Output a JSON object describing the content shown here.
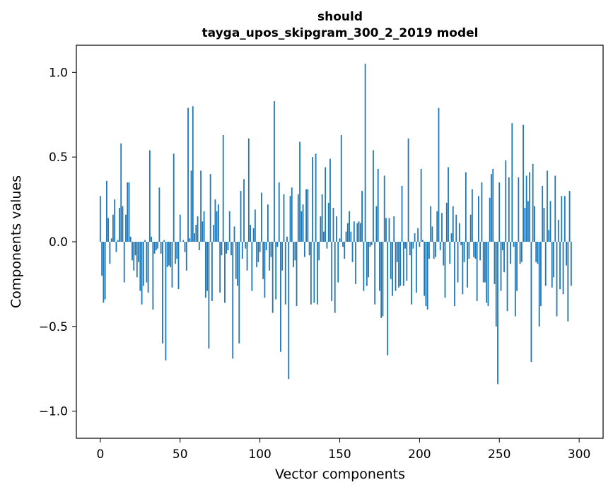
{
  "chart_data": {
    "type": "bar",
    "title_line1": "should",
    "title_line2": "tayga_upos_skipgram_300_2_2019 model",
    "xlabel": "Vector components",
    "ylabel": "Components values",
    "xlim": [
      -15,
      315
    ],
    "ylim": [
      -1.16,
      1.16
    ],
    "xticks": [
      0,
      50,
      100,
      150,
      200,
      250,
      300
    ],
    "xtick_labels": [
      "0",
      "50",
      "100",
      "150",
      "200",
      "250",
      "300"
    ],
    "yticks": [
      -1.0,
      -0.5,
      0.0,
      0.5,
      1.0
    ],
    "ytick_labels": [
      "−1.0",
      "−0.5",
      "0.0",
      "0.5",
      "1.0"
    ],
    "series_name": "components",
    "values": [
      0.27,
      -0.2,
      -0.36,
      -0.34,
      0.36,
      0.14,
      -0.13,
      0.02,
      0.16,
      0.25,
      -0.06,
      0.01,
      0.2,
      0.58,
      0.21,
      -0.24,
      0.16,
      0.35,
      0.35,
      0.03,
      -0.11,
      -0.17,
      -0.08,
      -0.21,
      -0.12,
      -0.29,
      -0.37,
      -0.26,
      0.01,
      -0.24,
      -0.3,
      0.54,
      0.03,
      -0.4,
      -0.07,
      -0.05,
      -0.04,
      0.32,
      -0.07,
      -0.6,
      0.01,
      -0.7,
      -0.15,
      -0.14,
      -0.15,
      -0.27,
      0.52,
      -0.13,
      -0.1,
      -0.28,
      0.16,
      0.0,
      0.01,
      -0.06,
      -0.17,
      0.79,
      0.02,
      0.42,
      0.8,
      0.05,
      0.1,
      0.15,
      -0.05,
      0.42,
      0.12,
      0.18,
      -0.33,
      -0.29,
      -0.63,
      0.4,
      -0.35,
      0.1,
      0.25,
      0.18,
      0.22,
      -0.3,
      -0.08,
      0.63,
      -0.36,
      -0.07,
      -0.05,
      0.18,
      -0.08,
      -0.69,
      0.09,
      -0.22,
      -0.26,
      -0.6,
      0.3,
      -0.1,
      0.37,
      -0.04,
      -0.17,
      0.61,
      0.1,
      -0.29,
      0.08,
      0.19,
      -0.15,
      -0.12,
      -0.06,
      0.29,
      -0.22,
      -0.33,
      -0.05,
      0.22,
      -0.17,
      -0.09,
      -0.42,
      0.83,
      -0.34,
      -0.03,
      0.35,
      -0.65,
      -0.17,
      0.28,
      -0.37,
      0.03,
      -0.81,
      0.27,
      0.32,
      -0.15,
      -0.11,
      -0.38,
      0.28,
      0.59,
      0.18,
      0.22,
      -0.09,
      0.31,
      0.31,
      -0.08,
      -0.37,
      0.5,
      -0.36,
      0.52,
      -0.37,
      -0.11,
      0.15,
      0.28,
      0.06,
      0.44,
      -0.04,
      0.23,
      0.49,
      -0.35,
      0.2,
      -0.42,
      0.15,
      -0.24,
      0.02,
      0.63,
      -0.03,
      -0.1,
      0.06,
      0.11,
      0.18,
      0.06,
      -0.12,
      0.12,
      -0.25,
      0.11,
      0.12,
      0.11,
      0.3,
      -0.29,
      1.05,
      -0.26,
      -0.21,
      -0.03,
      -0.02,
      0.54,
      -0.37,
      0.21,
      0.43,
      -0.29,
      -0.45,
      -0.44,
      0.39,
      0.14,
      -0.67,
      0.14,
      -0.22,
      -0.32,
      0.15,
      -0.29,
      -0.12,
      -0.27,
      -0.26,
      0.33,
      -0.26,
      -0.04,
      -0.23,
      0.61,
      -0.08,
      -0.37,
      -0.04,
      0.05,
      -0.3,
      0.08,
      -0.03,
      0.43,
      0.01,
      -0.32,
      -0.38,
      -0.4,
      -0.1,
      0.21,
      0.09,
      -0.1,
      -0.09,
      0.18,
      0.79,
      -0.05,
      0.17,
      -0.14,
      -0.33,
      0.23,
      0.44,
      -0.13,
      0.05,
      0.21,
      -0.38,
      0.16,
      -0.24,
      0.11,
      -0.02,
      -0.31,
      -0.12,
      0.41,
      -0.27,
      -0.1,
      0.16,
      0.31,
      -0.09,
      -0.1,
      -0.35,
      0.27,
      -0.11,
      0.35,
      -0.24,
      -0.24,
      -0.36,
      -0.38,
      0.26,
      0.4,
      0.43,
      -0.25,
      -0.5,
      -0.84,
      0.35,
      -0.29,
      -0.05,
      -0.18,
      0.48,
      -0.41,
      0.38,
      -0.13,
      0.7,
      -0.03,
      -0.44,
      -0.29,
      0.38,
      -0.13,
      -0.12,
      0.69,
      0.2,
      0.39,
      0.24,
      0.41,
      -0.71,
      0.46,
      0.21,
      -0.12,
      -0.13,
      -0.5,
      -0.38,
      0.33,
      0.2,
      -0.26,
      0.42,
      0.07,
      0.24,
      -0.27,
      -0.21,
      0.39,
      -0.44,
      0.13,
      -0.28,
      0.27,
      -0.31,
      0.27,
      -0.14,
      -0.47,
      0.3,
      -0.26
    ]
  }
}
